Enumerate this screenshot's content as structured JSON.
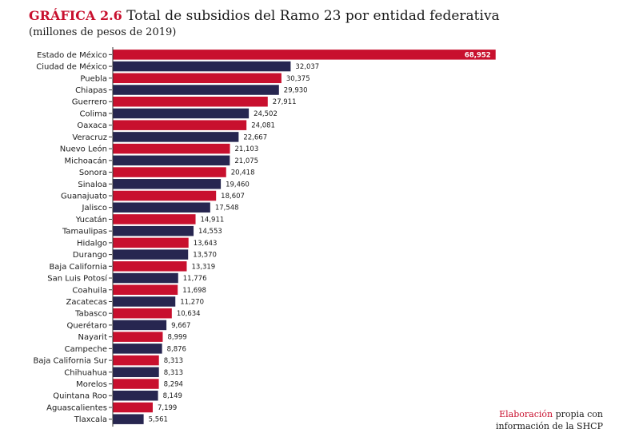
{
  "header": {
    "label": "GRÁFICA 2.6",
    "title": "Total de subsidios del Ramo 23 por entidad federativa",
    "subtitle": "(millones de pesos de 2019)"
  },
  "source": {
    "highlight": "Elaboración",
    "rest": "propia con",
    "line2": "información de la SHCP"
  },
  "colors": {
    "red": "#c8102e",
    "navy": "#272650",
    "axis": "#333333"
  },
  "chart_data": {
    "type": "bar",
    "orientation": "horizontal",
    "title": "Total de subsidios del Ramo 23 por entidad federativa",
    "subtitle": "(millones de pesos de 2019)",
    "xlim": [
      0,
      70000
    ],
    "grid": false,
    "categories": [
      "Estado de México",
      "Ciudad de México",
      "Puebla",
      "Chiapas",
      "Guerrero",
      "Colima",
      "Oaxaca",
      "Veracruz",
      "Nuevo León",
      "Michoacán",
      "Sonora",
      "Sinaloa",
      "Guanajuato",
      "Jalisco",
      "Yucatán",
      "Tamaulipas",
      "Hidalgo",
      "Durango",
      "Baja California",
      "San Luis Potosí",
      "Coahuila",
      "Zacatecas",
      "Tabasco",
      "Querétaro",
      "Nayarit",
      "Campeche",
      "Baja California Sur",
      "Chihuahua",
      "Morelos",
      "Quintana Roo",
      "Aguascalientes",
      "Tlaxcala"
    ],
    "values": [
      68952,
      32037,
      30375,
      29930,
      27911,
      24502,
      24081,
      22667,
      21103,
      21075,
      20418,
      19460,
      18607,
      17548,
      14911,
      14553,
      13643,
      13570,
      13319,
      11776,
      11698,
      11270,
      10634,
      9667,
      8999,
      8876,
      8313,
      8313,
      8294,
      8149,
      7199,
      5561
    ],
    "value_labels": [
      "68,952",
      "32,037",
      "30,375",
      "29,930",
      "27,911",
      "24,502",
      "24,081",
      "22,667",
      "21,103",
      "21,075",
      "20,418",
      "19,460",
      "18,607",
      "17,548",
      "14,911",
      "14,553",
      "13,643",
      "13,570",
      "13,319",
      "11,776",
      "11,698",
      "11,270",
      "10,634",
      "9,667",
      "8,999",
      "8,876",
      "8,313",
      "8,313",
      "8,294",
      "8,149",
      "7,199",
      "5,561"
    ],
    "bar_colors": [
      "red",
      "navy",
      "red",
      "navy",
      "red",
      "navy",
      "red",
      "navy",
      "red",
      "navy",
      "red",
      "navy",
      "red",
      "navy",
      "red",
      "navy",
      "red",
      "navy",
      "red",
      "navy",
      "red",
      "navy",
      "red",
      "navy",
      "red",
      "navy",
      "red",
      "navy",
      "red",
      "navy",
      "red",
      "navy"
    ]
  }
}
